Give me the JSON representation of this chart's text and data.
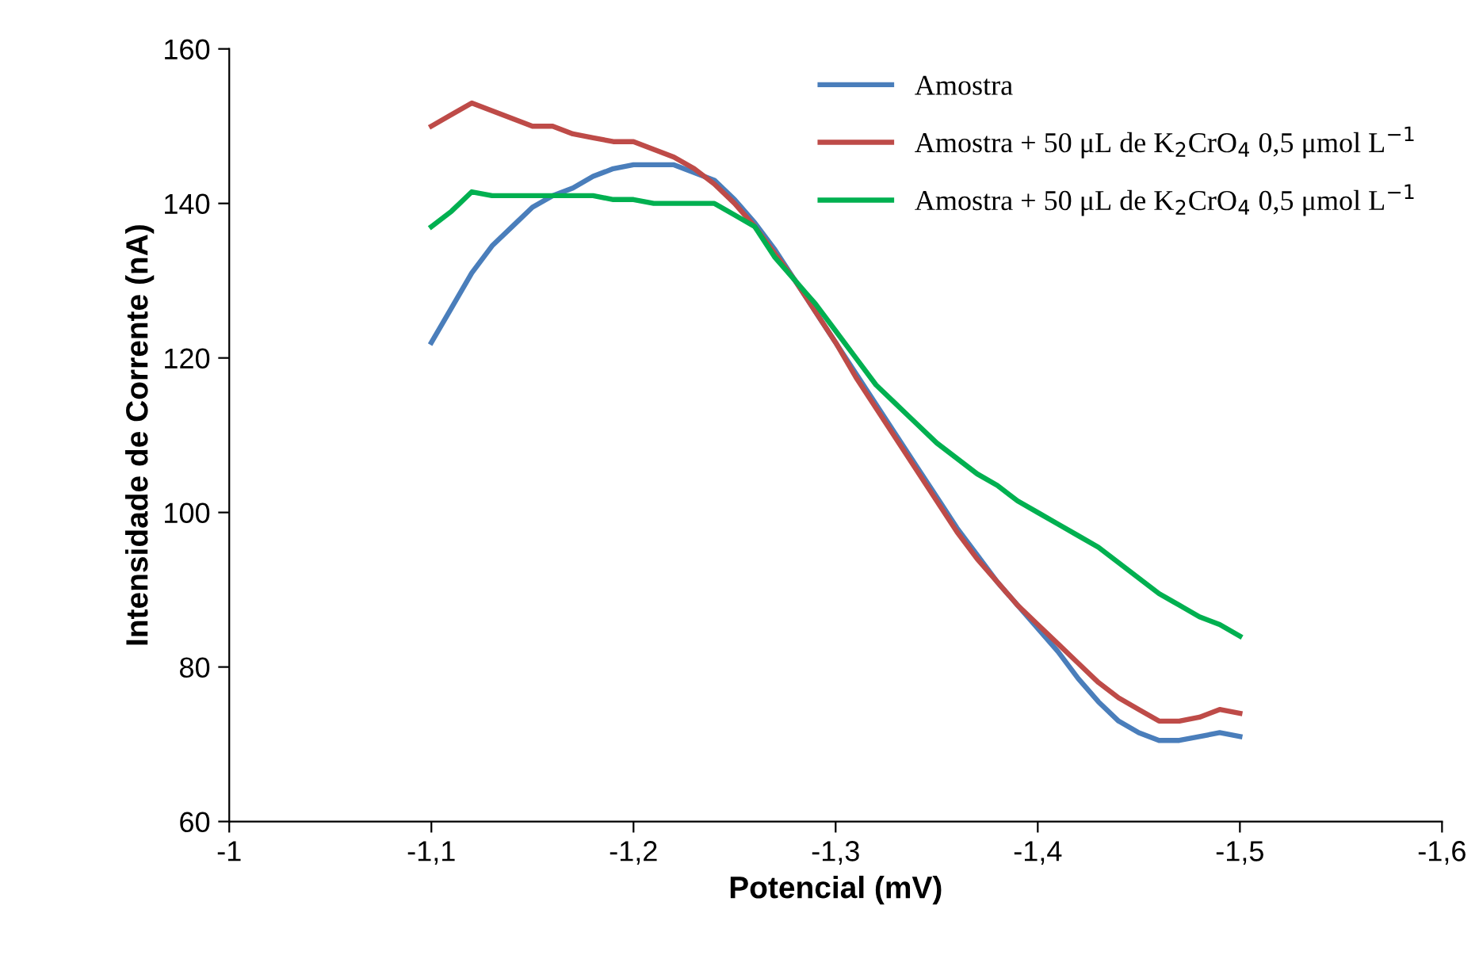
{
  "chart_data": {
    "type": "line",
    "xlabel": "Potencial (mV)",
    "ylabel": "Intensidade de Corrente (nA)",
    "x": [
      -1.1,
      -1.11,
      -1.12,
      -1.13,
      -1.14,
      -1.15,
      -1.16,
      -1.17,
      -1.18,
      -1.19,
      -1.2,
      -1.21,
      -1.22,
      -1.23,
      -1.24,
      -1.25,
      -1.26,
      -1.27,
      -1.28,
      -1.29,
      -1.3,
      -1.31,
      -1.32,
      -1.33,
      -1.34,
      -1.35,
      -1.36,
      -1.37,
      -1.38,
      -1.39,
      -1.4,
      -1.41,
      -1.42,
      -1.43,
      -1.44,
      -1.45,
      -1.46,
      -1.47,
      -1.48,
      -1.49,
      -1.5
    ],
    "series": [
      {
        "name": "Amostra",
        "color": "#4a7ebb",
        "values": [
          122,
          126.5,
          131,
          134.5,
          137,
          139.5,
          141,
          142,
          143.5,
          144.5,
          145,
          145,
          145,
          144,
          143,
          140.5,
          137.5,
          134,
          130,
          126,
          122,
          118,
          114,
          110,
          106,
          102,
          98,
          94.5,
          91,
          88,
          85,
          82,
          78.5,
          75.5,
          73,
          71.5,
          70.5,
          70.5,
          71,
          71.5,
          71
        ]
      },
      {
        "name": "Amostra + 50 μL de K$_{2}$CrO$_{4}$ 0,5 μmol L$^{−1}$",
        "color": "#be4b48",
        "values": [
          150,
          151.5,
          153,
          152,
          151,
          150,
          150,
          149,
          148.5,
          148,
          148,
          147,
          146,
          144.5,
          142.5,
          140,
          137,
          133.5,
          130,
          126,
          122,
          117.5,
          113.5,
          109.5,
          105.5,
          101.5,
          97.5,
          94,
          91,
          88,
          85.5,
          83,
          80.5,
          78,
          76,
          74.5,
          73,
          73,
          73.5,
          74.5,
          74
        ]
      },
      {
        "name": "Amostra + 50 μL de K$_{2}$CrO$_{4}$ 0,5 μmol L$^{−1}$",
        "color": "#00b050",
        "values": [
          137,
          139,
          141.5,
          141,
          141,
          141,
          141,
          141,
          141,
          140.5,
          140.5,
          140,
          140,
          140,
          140,
          138.5,
          137,
          133,
          130,
          127,
          123.5,
          120,
          116.5,
          114,
          111.5,
          109,
          107,
          105,
          103.5,
          101.5,
          100,
          98.5,
          97,
          95.5,
          93.5,
          91.5,
          89.5,
          88,
          86.5,
          85.5,
          84
        ]
      }
    ],
    "xlim": [
      -1,
      -1.6
    ],
    "xticks": [
      {
        "value": -1,
        "label": "-1"
      },
      {
        "value": -1.1,
        "label": "-1,1"
      },
      {
        "value": -1.2,
        "label": "-1,2"
      },
      {
        "value": -1.3,
        "label": "-1,3"
      },
      {
        "value": -1.4,
        "label": "-1,4"
      },
      {
        "value": -1.5,
        "label": "-1,5"
      },
      {
        "value": -1.6,
        "label": "-1,6"
      }
    ],
    "ylim": [
      60,
      160
    ],
    "yticks": [
      60,
      80,
      100,
      120,
      140,
      160
    ],
    "legend": "top right",
    "grid": false,
    "marker": "none",
    "line_style": "solid"
  }
}
